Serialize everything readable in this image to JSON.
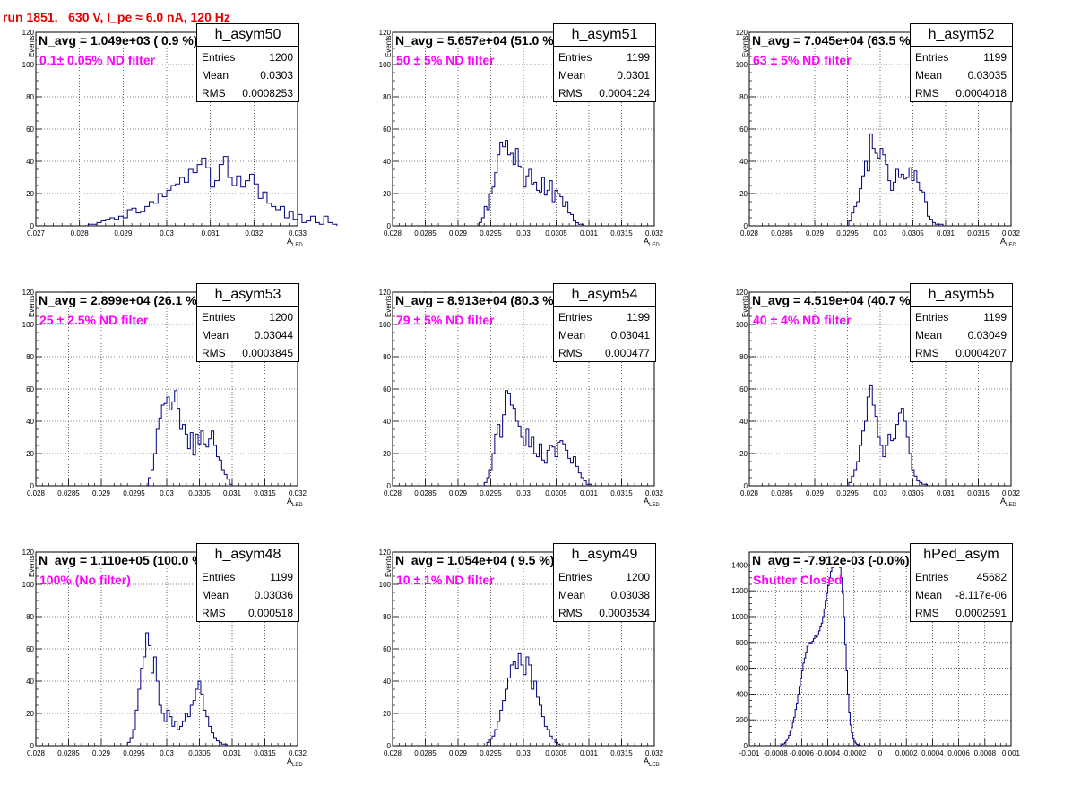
{
  "header": {
    "title": "run 1851,   630 V, I_pe ≈ 6.0 nA, 120 Hz"
  },
  "colors": {
    "title": "#e60000",
    "filter_label": "#ff00ff",
    "histogram": "#000080"
  },
  "panels": [
    {
      "name": "h_asym50",
      "stats": {
        "entries_label": "Entries",
        "entries": "1200",
        "mean_label": "Mean",
        "mean": "0.0303",
        "rms_label": "RMS",
        "rms": "0.0008253"
      },
      "navg": "N_avg = 1.049e+03 ( 0.9 %)",
      "filter": "0.1± 0.05% ND filter",
      "xlabel": "A",
      "xlabel_sub": "LED",
      "ylabel": "Events",
      "chart_data": {
        "type": "bar",
        "title": "h_asym50",
        "xlim": [
          0.027,
          0.033
        ],
        "ylim": [
          0,
          120
        ],
        "grid": true,
        "x_ticks": [
          0.027,
          0.028,
          0.029,
          0.03,
          0.031,
          0.032,
          0.033
        ],
        "x_tick_labels": [
          "0.027",
          "0.028",
          "0.029",
          "0.03",
          "0.031",
          "0.032",
          "0.033"
        ],
        "y_ticks": [
          0,
          20,
          40,
          60,
          80,
          100,
          120
        ],
        "y_tick_labels": [
          "0",
          "20",
          "40",
          "60",
          "80",
          "100",
          "120"
        ],
        "bins": {
          "start": 0.0282,
          "width": 0.0001,
          "values": [
            1,
            1,
            2,
            3,
            4,
            5,
            4,
            6,
            5,
            10,
            11,
            8,
            9,
            12,
            15,
            14,
            20,
            18,
            22,
            25,
            26,
            30,
            27,
            35,
            33,
            38,
            42,
            36,
            24,
            28,
            38,
            43,
            30,
            25,
            31,
            24,
            28,
            32,
            26,
            17,
            21,
            14,
            12,
            10,
            12,
            5,
            9,
            4,
            7,
            2,
            3,
            6,
            2,
            1,
            6,
            2,
            1
          ]
        }
      }
    },
    {
      "name": "h_asym51",
      "stats": {
        "entries_label": "Entries",
        "entries": "1199",
        "mean_label": "Mean",
        "mean": "0.0301",
        "rms_label": "RMS",
        "rms": "0.0004124"
      },
      "navg": "N_avg = 5.657e+04 (51.0 %)",
      "filter": "50 ± 5% ND filter",
      "xlabel": "A",
      "xlabel_sub": "LED",
      "ylabel": "Events",
      "chart_data": {
        "type": "bar",
        "title": "h_asym51",
        "xlim": [
          0.028,
          0.032
        ],
        "ylim": [
          0,
          120
        ],
        "grid": true,
        "x_ticks": [
          0.028,
          0.0285,
          0.029,
          0.0295,
          0.03,
          0.0305,
          0.031,
          0.0315,
          0.032
        ],
        "x_tick_labels": [
          "0.028",
          "0.0285",
          "0.029",
          "0.0295",
          "0.03",
          "0.0305",
          "0.031",
          "0.0315",
          "0.032"
        ],
        "y_ticks": [
          0,
          20,
          40,
          60,
          80,
          100,
          120
        ],
        "y_tick_labels": [
          "0",
          "20",
          "40",
          "60",
          "80",
          "100",
          "120"
        ],
        "bins": {
          "start": 0.02932,
          "width": 4e-05,
          "values": [
            2,
            5,
            12,
            10,
            20,
            24,
            33,
            44,
            52,
            49,
            53,
            44,
            45,
            38,
            48,
            37,
            36,
            24,
            31,
            35,
            26,
            27,
            22,
            21,
            30,
            19,
            22,
            28,
            15,
            22,
            20,
            18,
            12,
            15,
            8,
            7,
            3,
            2,
            1,
            1
          ]
        }
      }
    },
    {
      "name": "h_asym52",
      "stats": {
        "entries_label": "Entries",
        "entries": "1199",
        "mean_label": "Mean",
        "mean": "0.03035",
        "rms_label": "RMS",
        "rms": "0.0004018"
      },
      "navg": "N_avg = 7.045e+04 (63.5 %)",
      "filter": "63 ± 5% ND filter",
      "xlabel": "A",
      "xlabel_sub": "LED",
      "ylabel": "Events",
      "chart_data": {
        "type": "bar",
        "title": "h_asym52",
        "xlim": [
          0.028,
          0.032
        ],
        "ylim": [
          0,
          120
        ],
        "grid": true,
        "x_ticks": [
          0.028,
          0.0285,
          0.029,
          0.0295,
          0.03,
          0.0305,
          0.031,
          0.0315,
          0.032
        ],
        "x_tick_labels": [
          "0.028",
          "0.0285",
          "0.029",
          "0.0295",
          "0.03",
          "0.0305",
          "0.031",
          "0.0315",
          "0.032"
        ],
        "y_ticks": [
          0,
          20,
          40,
          60,
          80,
          100,
          120
        ],
        "y_tick_labels": [
          "0",
          "20",
          "40",
          "60",
          "80",
          "100",
          "120"
        ],
        "bins": {
          "start": 0.02952,
          "width": 4e-05,
          "values": [
            3,
            8,
            12,
            15,
            23,
            31,
            40,
            34,
            57,
            48,
            45,
            42,
            48,
            44,
            38,
            28,
            22,
            27,
            35,
            30,
            32,
            29,
            30,
            36,
            28,
            34,
            27,
            22,
            21,
            15,
            6,
            4,
            2,
            1,
            1,
            1
          ]
        }
      }
    },
    {
      "name": "h_asym53",
      "stats": {
        "entries_label": "Entries",
        "entries": "1200",
        "mean_label": "Mean",
        "mean": "0.03044",
        "rms_label": "RMS",
        "rms": "0.0003845"
      },
      "navg": "N_avg = 2.899e+04 (26.1 %)",
      "filter": "25 ± 2.5% ND filter",
      "xlabel": "A",
      "xlabel_sub": "LED",
      "ylabel": "Events",
      "chart_data": {
        "type": "bar",
        "title": "h_asym53",
        "xlim": [
          0.028,
          0.032
        ],
        "ylim": [
          0,
          120
        ],
        "grid": true,
        "x_ticks": [
          0.028,
          0.0285,
          0.029,
          0.0295,
          0.03,
          0.0305,
          0.031,
          0.0315,
          0.032
        ],
        "x_tick_labels": [
          "0.028",
          "0.0285",
          "0.029",
          "0.0295",
          "0.03",
          "0.0305",
          "0.031",
          "0.0315",
          "0.032"
        ],
        "y_ticks": [
          0,
          20,
          40,
          60,
          80,
          100,
          120
        ],
        "y_tick_labels": [
          "0",
          "20",
          "40",
          "60",
          "80",
          "100",
          "120"
        ],
        "bins": {
          "start": 0.02972,
          "width": 4e-05,
          "values": [
            5,
            10,
            20,
            35,
            42,
            50,
            51,
            55,
            47,
            52,
            59,
            48,
            35,
            38,
            32,
            23,
            33,
            19,
            32,
            26,
            34,
            26,
            24,
            29,
            34,
            25,
            18,
            16,
            10,
            7,
            4,
            1
          ]
        }
      }
    },
    {
      "name": "h_asym54",
      "stats": {
        "entries_label": "Entries",
        "entries": "1199",
        "mean_label": "Mean",
        "mean": "0.03041",
        "rms_label": "RMS",
        "rms": "0.000477"
      },
      "navg": "N_avg = 8.913e+04 (80.3 %)",
      "filter": "79 ± 5% ND filter",
      "xlabel": "A",
      "xlabel_sub": "LED",
      "ylabel": "Events",
      "chart_data": {
        "type": "bar",
        "title": "h_asym54",
        "xlim": [
          0.028,
          0.032
        ],
        "ylim": [
          0,
          120
        ],
        "grid": true,
        "x_ticks": [
          0.028,
          0.0285,
          0.029,
          0.0295,
          0.03,
          0.0305,
          0.031,
          0.0315,
          0.032
        ],
        "x_tick_labels": [
          "0.028",
          "0.0285",
          "0.029",
          "0.0295",
          "0.03",
          "0.0305",
          "0.031",
          "0.0315",
          "0.032"
        ],
        "y_ticks": [
          0,
          20,
          40,
          60,
          80,
          100,
          120
        ],
        "y_tick_labels": [
          "0",
          "20",
          "40",
          "60",
          "80",
          "100",
          "120"
        ],
        "bins": {
          "start": 0.0294,
          "width": 4e-05,
          "values": [
            2,
            5,
            10,
            20,
            32,
            38,
            30,
            44,
            59,
            57,
            50,
            48,
            40,
            37,
            30,
            25,
            35,
            24,
            30,
            20,
            18,
            26,
            16,
            14,
            22,
            25,
            24,
            18,
            27,
            28,
            26,
            22,
            17,
            14,
            18,
            12,
            8,
            5,
            3,
            1,
            1
          ]
        }
      }
    },
    {
      "name": "h_asym55",
      "stats": {
        "entries_label": "Entries",
        "entries": "1199",
        "mean_label": "Mean",
        "mean": "0.03049",
        "rms_label": "RMS",
        "rms": "0.0004207"
      },
      "navg": "N_avg = 4.519e+04 (40.7 %)",
      "filter": "40 ± 4% ND filter",
      "xlabel": "A",
      "xlabel_sub": "LED",
      "ylabel": "Events",
      "chart_data": {
        "type": "bar",
        "title": "h_asym55",
        "xlim": [
          0.028,
          0.032
        ],
        "ylim": [
          0,
          120
        ],
        "grid": true,
        "x_ticks": [
          0.028,
          0.0285,
          0.029,
          0.0295,
          0.03,
          0.0305,
          0.031,
          0.0315,
          0.032
        ],
        "x_tick_labels": [
          "0.028",
          "0.0285",
          "0.029",
          "0.0295",
          "0.03",
          "0.0305",
          "0.031",
          "0.0315",
          "0.032"
        ],
        "y_ticks": [
          0,
          20,
          40,
          60,
          80,
          100,
          120
        ],
        "y_tick_labels": [
          "0",
          "20",
          "40",
          "60",
          "80",
          "100",
          "120"
        ],
        "bins": {
          "start": 0.02952,
          "width": 4e-05,
          "values": [
            2,
            6,
            10,
            15,
            25,
            34,
            40,
            55,
            62,
            50,
            43,
            30,
            25,
            18,
            25,
            32,
            28,
            29,
            38,
            45,
            48,
            40,
            30,
            20,
            10,
            6,
            3,
            2,
            1,
            1
          ]
        }
      }
    },
    {
      "name": "h_asym48",
      "stats": {
        "entries_label": "Entries",
        "entries": "1199",
        "mean_label": "Mean",
        "mean": "0.03036",
        "rms_label": "RMS",
        "rms": "0.000518"
      },
      "navg": "N_avg = 1.110e+05 (100.0 %)",
      "filter": "100% (No filter)",
      "xlabel": "A",
      "xlabel_sub": "LED",
      "ylabel": "Events",
      "chart_data": {
        "type": "bar",
        "title": "h_asym48",
        "xlim": [
          0.028,
          0.032
        ],
        "ylim": [
          0,
          120
        ],
        "grid": true,
        "x_ticks": [
          0.028,
          0.0285,
          0.029,
          0.0295,
          0.03,
          0.0305,
          0.031,
          0.0315,
          0.032
        ],
        "x_tick_labels": [
          "0.028",
          "0.0285",
          "0.029",
          "0.0295",
          "0.03",
          "0.0305",
          "0.031",
          "0.0315",
          "0.032"
        ],
        "y_ticks": [
          0,
          20,
          40,
          60,
          80,
          100,
          120
        ],
        "y_tick_labels": [
          "0",
          "20",
          "40",
          "60",
          "80",
          "100",
          "120"
        ],
        "bins": {
          "start": 0.0294,
          "width": 4e-05,
          "values": [
            2,
            5,
            10,
            22,
            35,
            48,
            55,
            70,
            62,
            45,
            55,
            40,
            25,
            20,
            15,
            22,
            18,
            12,
            15,
            10,
            12,
            15,
            20,
            18,
            25,
            28,
            35,
            40,
            32,
            22,
            18,
            12,
            8,
            5,
            3,
            2,
            1,
            1
          ]
        }
      }
    },
    {
      "name": "h_asym49",
      "stats": {
        "entries_label": "Entries",
        "entries": "1200",
        "mean_label": "Mean",
        "mean": "0.03038",
        "rms_label": "RMS",
        "rms": "0.0003534"
      },
      "navg": "N_avg = 1.054e+04 ( 9.5 %)",
      "filter": "10 ± 1% ND filter",
      "xlabel": "A",
      "xlabel_sub": "LED",
      "ylabel": "Events",
      "chart_data": {
        "type": "bar",
        "title": "h_asym49",
        "xlim": [
          0.028,
          0.032
        ],
        "ylim": [
          0,
          120
        ],
        "grid": true,
        "x_ticks": [
          0.028,
          0.0285,
          0.029,
          0.0295,
          0.03,
          0.0305,
          0.031,
          0.0315,
          0.032
        ],
        "x_tick_labels": [
          "0.028",
          "0.0285",
          "0.029",
          "0.0295",
          "0.03",
          "0.0305",
          "0.031",
          "0.0315",
          "0.032"
        ],
        "y_ticks": [
          0,
          20,
          40,
          60,
          80,
          100,
          120
        ],
        "y_tick_labels": [
          "0",
          "20",
          "40",
          "60",
          "80",
          "100",
          "120"
        ],
        "bins": {
          "start": 0.02944,
          "width": 4e-05,
          "values": [
            2,
            4,
            6,
            10,
            15,
            22,
            28,
            35,
            42,
            50,
            52,
            48,
            57,
            50,
            44,
            55,
            50,
            35,
            40,
            30,
            25,
            18,
            12,
            10,
            6,
            4,
            2,
            1
          ]
        }
      }
    },
    {
      "name": "hPed_asym",
      "stats": {
        "entries_label": "Entries",
        "entries": "45682",
        "mean_label": "Mean",
        "mean": "-8.117e-06",
        "rms_label": "RMS",
        "rms": "0.0002591"
      },
      "navg": "N_avg = -7.912e-03 (-0.0%)",
      "filter": "Shutter Closed",
      "xlabel": "",
      "xlabel_sub": "",
      "ylabel": "",
      "chart_data": {
        "type": "bar",
        "title": "hPed_asym",
        "xlim": [
          -0.001,
          0.001
        ],
        "ylim": [
          0,
          1500
        ],
        "grid": true,
        "x_ticks": [
          -0.001,
          -0.0008,
          -0.0006,
          -0.0004,
          -0.0002,
          0,
          0.0002,
          0.0004,
          0.0006,
          0.0008,
          0.001
        ],
        "x_tick_labels": [
          "-0.001",
          "-0.0008",
          "-0.0006",
          "-0.0004",
          "-0.0002",
          "0",
          "0.0002",
          "0.0004",
          "0.0006",
          "0.0008",
          "0.001"
        ],
        "y_ticks": [
          0,
          200,
          400,
          600,
          800,
          1000,
          1200,
          1400
        ],
        "y_tick_labels": [
          "0",
          "200",
          "400",
          "600",
          "800",
          "1000",
          "1200",
          "1400"
        ],
        "bins": {
          "start": -0.00076,
          "width": 1e-05,
          "values": [
            5,
            10,
            15,
            25,
            40,
            55,
            80,
            110,
            140,
            180,
            220,
            280,
            330,
            400,
            460,
            520,
            580,
            640,
            680,
            720,
            770,
            790,
            800,
            790,
            810,
            830,
            850,
            840,
            860,
            890,
            920,
            950,
            1000,
            1060,
            1120,
            1180,
            1240,
            1300,
            1350,
            1380,
            1420,
            1440,
            1400,
            1420,
            1440,
            1380,
            1300,
            1180,
            1000,
            780,
            580,
            400,
            260,
            160,
            100,
            60,
            35,
            20,
            10,
            5,
            3
          ]
        }
      }
    }
  ]
}
